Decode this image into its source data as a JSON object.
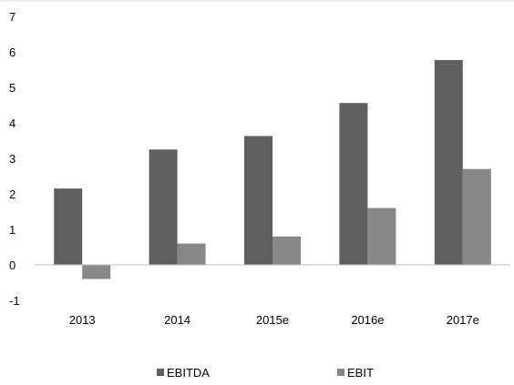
{
  "chart_data": {
    "type": "bar",
    "title": "",
    "xlabel": "",
    "ylabel": "",
    "categories": [
      "2013",
      "2014",
      "2015e",
      "2016e",
      "2017e"
    ],
    "series": [
      {
        "name": "EBITDA",
        "values": [
          2.15,
          3.25,
          3.63,
          4.56,
          5.77
        ],
        "color": "#5f5f5f"
      },
      {
        "name": "EBIT",
        "values": [
          -0.4,
          0.6,
          0.8,
          1.6,
          2.7
        ],
        "color": "#878787"
      }
    ],
    "ylim": [
      -1,
      7
    ],
    "yticks": [
      -1,
      0,
      1,
      2,
      3,
      4,
      5,
      6,
      7
    ],
    "grid": false,
    "legend_position": "bottom"
  }
}
